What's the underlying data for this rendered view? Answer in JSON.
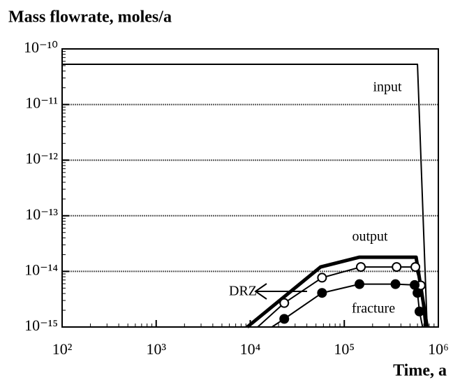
{
  "chart_data": {
    "type": "line",
    "title": "Mass flowrate, moles/a",
    "x_label": "Time, a",
    "xscale": "log",
    "yscale": "log",
    "xlim": [
      100,
      1000000
    ],
    "ylim": [
      1e-15,
      1e-10
    ],
    "xticks": [
      {
        "value": 100,
        "label": "10²"
      },
      {
        "value": 1000,
        "label": "10³"
      },
      {
        "value": 10000,
        "label": "10⁴"
      },
      {
        "value": 100000,
        "label": "10⁵"
      },
      {
        "value": 1000000,
        "label": "10⁶"
      }
    ],
    "yticks": [
      {
        "value": 1e-15,
        "label": "10⁻¹⁵"
      },
      {
        "value": 1e-14,
        "label": "10⁻¹⁴"
      },
      {
        "value": 1e-13,
        "label": "10⁻¹³"
      },
      {
        "value": 1e-12,
        "label": "10⁻¹²"
      },
      {
        "value": 1e-11,
        "label": "10⁻¹¹"
      },
      {
        "value": 1e-10,
        "label": "10⁻¹⁰"
      }
    ],
    "grid": true,
    "series": [
      {
        "name": "input",
        "color": "#000000",
        "width": 2,
        "marker": "none",
        "x": [
          100,
          600000,
          760000
        ],
        "values": [
          5.3e-11,
          5.3e-11,
          1e-15
        ]
      },
      {
        "name": "output",
        "color": "#000000",
        "width": 5,
        "marker": "none",
        "x": [
          9300,
          56000,
          145000,
          580000,
          760000
        ],
        "values": [
          1e-15,
          1.2e-14,
          1.8e-14,
          1.8e-14,
          1e-15
        ]
      },
      {
        "name": "DRZ",
        "color": "#000000",
        "width": 2,
        "marker": "open",
        "x": [
          12000,
          23000,
          58000,
          150000,
          360000,
          570000,
          650000,
          720000
        ],
        "values": [
          1e-15,
          2.7e-15,
          7.7e-15,
          1.2e-14,
          1.2e-14,
          1.2e-14,
          5.6e-15,
          1e-15
        ]
      },
      {
        "name": "fracture",
        "color": "#000000",
        "width": 2,
        "marker": "filled",
        "x": [
          17000,
          23000,
          58000,
          145000,
          350000,
          560000,
          600000,
          630000,
          680000
        ],
        "values": [
          1e-15,
          1.4e-15,
          4.1e-15,
          5.9e-15,
          5.9e-15,
          5.7e-15,
          4.1e-15,
          1.9e-15,
          1e-15
        ]
      }
    ]
  }
}
